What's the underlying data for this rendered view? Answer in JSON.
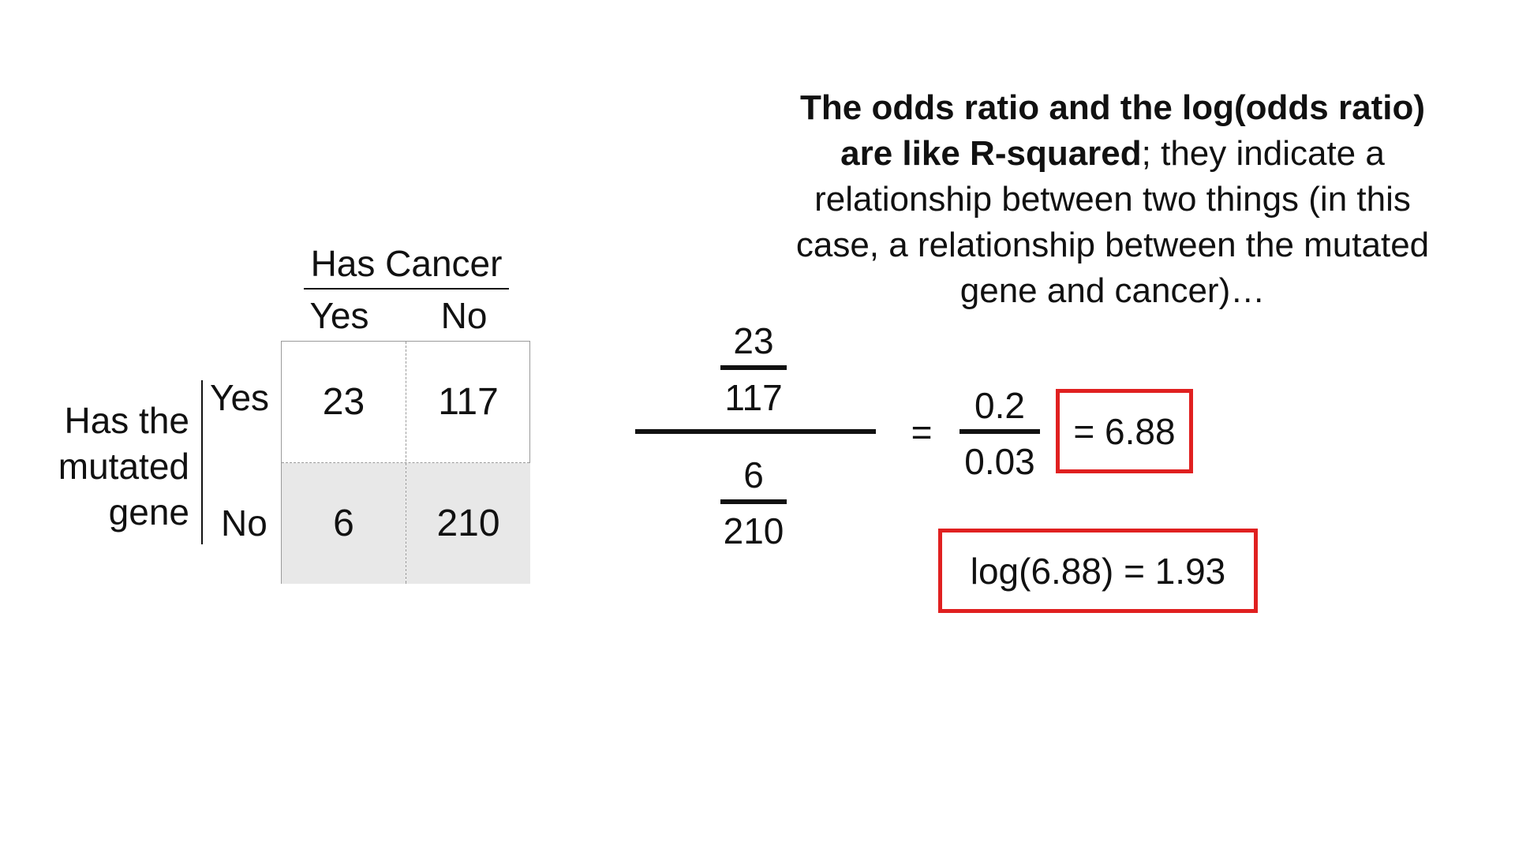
{
  "explanation": {
    "bold_line1": "The odds ratio and the log(odds ratio)",
    "bold_line2": "are like R-squared",
    "rest_line2": "; they indicate a",
    "line3": "relationship between two things (in this",
    "line4": "case, a relationship between the mutated",
    "line5": "gene and cancer)…"
  },
  "table": {
    "column_header": "Has Cancer",
    "columns": [
      "Yes",
      "No"
    ],
    "row_group_label": [
      "Has the",
      "mutated",
      "gene"
    ],
    "rows": [
      "Yes",
      "No"
    ],
    "cells": [
      [
        "23",
        "117"
      ],
      [
        "6",
        "210"
      ]
    ]
  },
  "computation": {
    "top_numerator": "23",
    "top_denominator": "117",
    "bottom_numerator": "6",
    "bottom_denominator": "210",
    "equals_sign": "=",
    "simplified_numerator": "0.2",
    "simplified_denominator": "0.03",
    "odds_ratio_result": "= 6.88",
    "log_result": "log(6.88) = 1.93"
  },
  "colors": {
    "highlight_box": "#e02020",
    "shaded_row": "#e8e8e8"
  }
}
